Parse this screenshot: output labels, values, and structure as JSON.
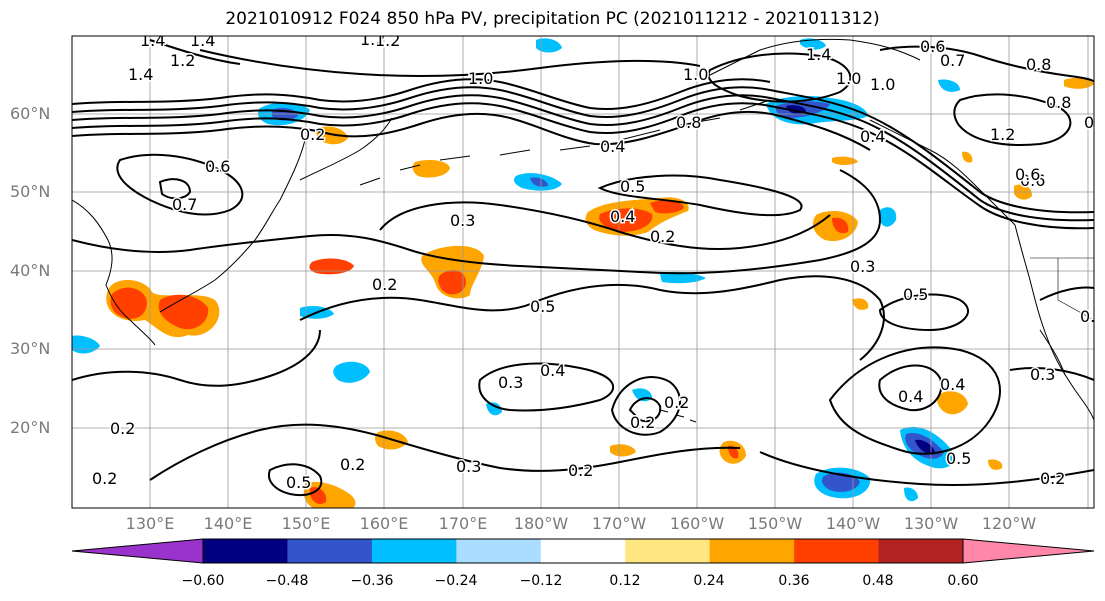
{
  "figure": {
    "title": "2021010912 F024 850 hPa PV, precipitation PC (2021011212 - 2021011312)"
  },
  "axes": {
    "lat_labels": [
      "60°N",
      "50°N",
      "40°N",
      "30°N",
      "20°N"
    ],
    "lon_labels": [
      "130°E",
      "140°E",
      "150°E",
      "160°E",
      "170°E",
      "180°W",
      "170°W",
      "160°W",
      "150°W",
      "140°W",
      "130°W",
      "120°W"
    ]
  },
  "contour_labels": [
    "1.4",
    "1.4",
    "1.2",
    "1.2",
    "1.4",
    "1.2",
    "1.0",
    "1.0",
    "1.0",
    "1.4",
    "0.6",
    "0.7",
    "0.8",
    "0.2",
    "0.6",
    "0.7",
    "0.3",
    "0.4",
    "0.8",
    "0.4",
    "0.5",
    "0.3",
    "0.2",
    "1.2",
    "0.8",
    "0.6",
    "1.0",
    "0.6",
    "0.5",
    "0.3",
    "0.2",
    "0.4",
    "0.2",
    "0.5",
    "0.4",
    "0.3",
    "0.2",
    "0.2",
    "0.2",
    "0.2",
    "0.3",
    "0.2",
    "0.5",
    "0.4",
    "0.4",
    "0.5",
    "0.3",
    "0.5",
    "0.2"
  ],
  "colorbar": {
    "colors": [
      "#9933cc",
      "#000080",
      "#3355cc",
      "#00bfff",
      "#aaddff",
      "#ffffff",
      "#ffe680",
      "#ffa500",
      "#ff4000",
      "#b22222",
      "#ff88aa"
    ],
    "tick_labels": [
      "−0.60",
      "−0.48",
      "−0.36",
      "−0.24",
      "−0.12",
      "0.12",
      "0.24",
      "0.36",
      "0.48",
      "0.60"
    ]
  }
}
